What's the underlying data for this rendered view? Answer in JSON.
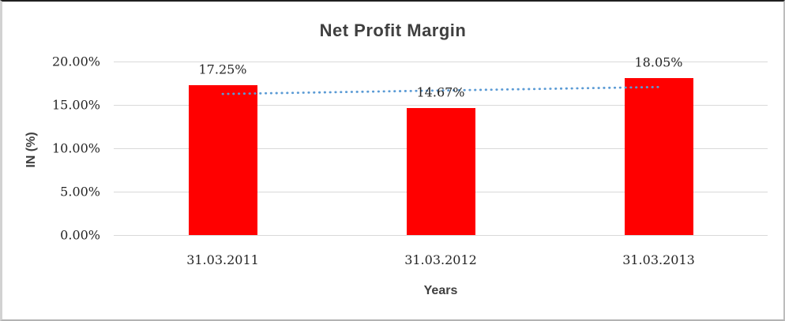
{
  "chart_data": {
    "type": "bar",
    "title": "Net Profit Margin",
    "xlabel": "Years",
    "ylabel": "IN (%)",
    "categories": [
      "31.03.2011",
      "31.03.2012",
      "31.03.2013"
    ],
    "values": [
      17.25,
      14.67,
      18.05
    ],
    "data_labels": [
      "17.25%",
      "14.67%",
      "18.05%"
    ],
    "ylim": [
      0,
      20
    ],
    "yticks": [
      {
        "value": 0,
        "label": "0.00%"
      },
      {
        "value": 5,
        "label": "5.00%"
      },
      {
        "value": 10,
        "label": "10.00%"
      },
      {
        "value": 15,
        "label": "15.00%"
      },
      {
        "value": 20,
        "label": "20.00%"
      }
    ],
    "grid": "horizontal",
    "legend": "none",
    "colors": {
      "bar": "#ff0000",
      "gridline": "#d9d9d9",
      "trendline": "#5b9bd5",
      "title_text": "#3f3f3f",
      "label_text": "#262626"
    },
    "trendline": {
      "kind": "linear",
      "style": "dotted",
      "start_value": 16.26,
      "end_value": 17.06
    }
  }
}
